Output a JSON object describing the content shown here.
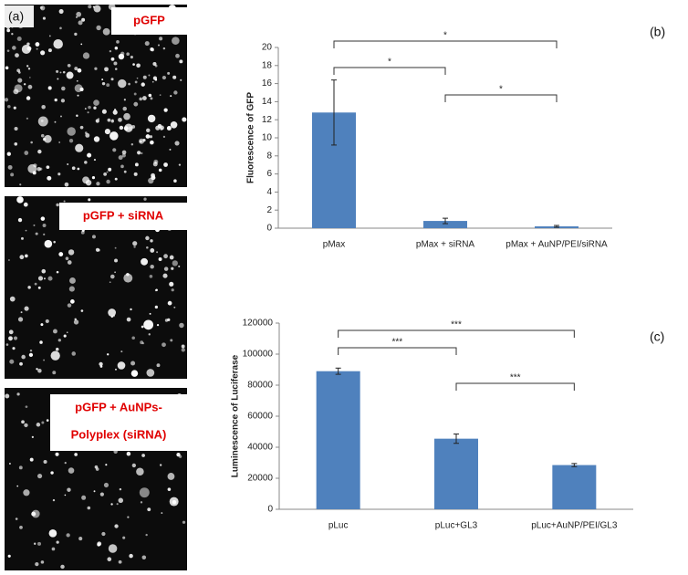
{
  "panels": {
    "a": {
      "label": "(a)",
      "images": [
        {
          "lines": [
            "pGFP"
          ]
        },
        {
          "lines": [
            "pGFP + siRNA"
          ]
        },
        {
          "lines": [
            "pGFP + AuNPs-",
            "Polyplex (siRNA)"
          ]
        }
      ]
    },
    "b": {
      "label": "(b)"
    },
    "c": {
      "label": "(c)"
    }
  },
  "chart_data": [
    {
      "type": "bar",
      "ylabel": "Fluorescence of GFP",
      "categories": [
        "pMax",
        "pMax + siRNA",
        "pMax + AuNP/PEI/siRNA"
      ],
      "values": [
        12.8,
        0.8,
        0.2
      ],
      "errors": [
        3.6,
        0.3,
        0.1
      ],
      "color": "#4f81bd",
      "ylim": [
        0,
        20
      ],
      "yticks": [
        0,
        2,
        4,
        6,
        8,
        10,
        12,
        14,
        16,
        18,
        20
      ],
      "brackets": [
        {
          "categories": [
            0,
            2
          ],
          "label": "*"
        },
        {
          "categories": [
            0,
            1
          ],
          "label": "*"
        },
        {
          "categories": [
            1,
            2
          ],
          "label": "*"
        }
      ]
    },
    {
      "type": "bar",
      "ylabel": "Luminescence of Luciferase",
      "categories": [
        "pLuc",
        "pLuc+GL3",
        "pLuc+AuNP/PEI/GL3"
      ],
      "values": [
        89000,
        45500,
        28500
      ],
      "errors": [
        2000,
        3000,
        1000
      ],
      "color": "#4f81bd",
      "ylim": [
        0,
        120000
      ],
      "yticks": [
        0,
        20000,
        40000,
        60000,
        80000,
        100000,
        120000
      ],
      "brackets": [
        {
          "categories": [
            0,
            2
          ],
          "label": "***"
        },
        {
          "categories": [
            0,
            1
          ],
          "label": "***"
        },
        {
          "categories": [
            1,
            2
          ],
          "label": "***"
        }
      ]
    }
  ]
}
